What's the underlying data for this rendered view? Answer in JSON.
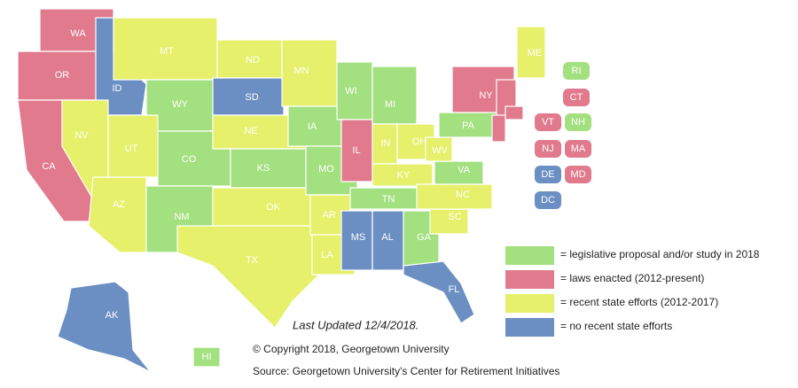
{
  "map": {
    "states": [
      {
        "label": "WA",
        "color": "#e07a8c"
      },
      {
        "label": "OR",
        "color": "#e07a8c"
      },
      {
        "label": "CA",
        "color": "#e07a8c"
      },
      {
        "label": "ID",
        "color": "#6b8fc2"
      },
      {
        "label": "NV",
        "color": "#e6f06a"
      },
      {
        "label": "MT",
        "color": "#e6f06a"
      },
      {
        "label": "WY",
        "color": "#a3e07f"
      },
      {
        "label": "UT",
        "color": "#e6f06a"
      },
      {
        "label": "AZ",
        "color": "#e6f06a"
      },
      {
        "label": "CO",
        "color": "#a3e07f"
      },
      {
        "label": "NM",
        "color": "#a3e07f"
      },
      {
        "label": "ND",
        "color": "#e6f06a"
      },
      {
        "label": "SD",
        "color": "#6b8fc2"
      },
      {
        "label": "NE",
        "color": "#e6f06a"
      },
      {
        "label": "KS",
        "color": "#a3e07f"
      },
      {
        "label": "OK",
        "color": "#e6f06a"
      },
      {
        "label": "TX",
        "color": "#e6f06a"
      },
      {
        "label": "MN",
        "color": "#e6f06a"
      },
      {
        "label": "IA",
        "color": "#a3e07f"
      },
      {
        "label": "MO",
        "color": "#a3e07f"
      },
      {
        "label": "AR",
        "color": "#e6f06a"
      },
      {
        "label": "LA",
        "color": "#e6f06a"
      },
      {
        "label": "WI",
        "color": "#a3e07f"
      },
      {
        "label": "IL",
        "color": "#e07a8c"
      },
      {
        "label": "MI",
        "color": "#a3e07f"
      },
      {
        "label": "IN",
        "color": "#e6f06a"
      },
      {
        "label": "OH",
        "color": "#e6f06a"
      },
      {
        "label": "KY",
        "color": "#e6f06a"
      },
      {
        "label": "TN",
        "color": "#a3e07f"
      },
      {
        "label": "MS",
        "color": "#6b8fc2"
      },
      {
        "label": "AL",
        "color": "#6b8fc2"
      },
      {
        "label": "GA",
        "color": "#a3e07f"
      },
      {
        "label": "FL",
        "color": "#6b8fc2"
      },
      {
        "label": "SC",
        "color": "#e6f06a"
      },
      {
        "label": "NC",
        "color": "#e6f06a"
      },
      {
        "label": "VA",
        "color": "#a3e07f"
      },
      {
        "label": "WV",
        "color": "#e6f06a"
      },
      {
        "label": "PA",
        "color": "#a3e07f"
      },
      {
        "label": "NY",
        "color": "#e07a8c"
      },
      {
        "label": "ME",
        "color": "#e6f06a"
      },
      {
        "label": "AK",
        "color": "#6b8fc2"
      },
      {
        "label": "HI",
        "color": "#a3e07f"
      }
    ],
    "boxed_states": [
      {
        "label": "RI",
        "color": "#a3e07f"
      },
      {
        "label": "CT",
        "color": "#e07a8c"
      },
      {
        "label": "VT",
        "color": "#e07a8c"
      },
      {
        "label": "NH",
        "color": "#a3e07f"
      },
      {
        "label": "NJ",
        "color": "#e07a8c"
      },
      {
        "label": "MA",
        "color": "#e07a8c"
      },
      {
        "label": "DE",
        "color": "#6b8fc2"
      },
      {
        "label": "MD",
        "color": "#e07a8c"
      },
      {
        "label": "DC",
        "color": "#6b8fc2"
      }
    ],
    "legend": [
      {
        "label": "= legislative proposal and/or study in 2018",
        "color": "#a3e07f"
      },
      {
        "label": "= laws enacted (2012-present)",
        "color": "#e07a8c"
      },
      {
        "label": "= recent state efforts (2012-2017)",
        "color": "#e6f06a"
      },
      {
        "label": "= no recent state efforts",
        "color": "#6b8fc2"
      }
    ],
    "last_updated": "Last Updated 12/4/2018.",
    "copyright": "© Copyright 2018, Georgetown University",
    "source": "Source: Georgetown University's Center for Retirement Initiatives"
  }
}
